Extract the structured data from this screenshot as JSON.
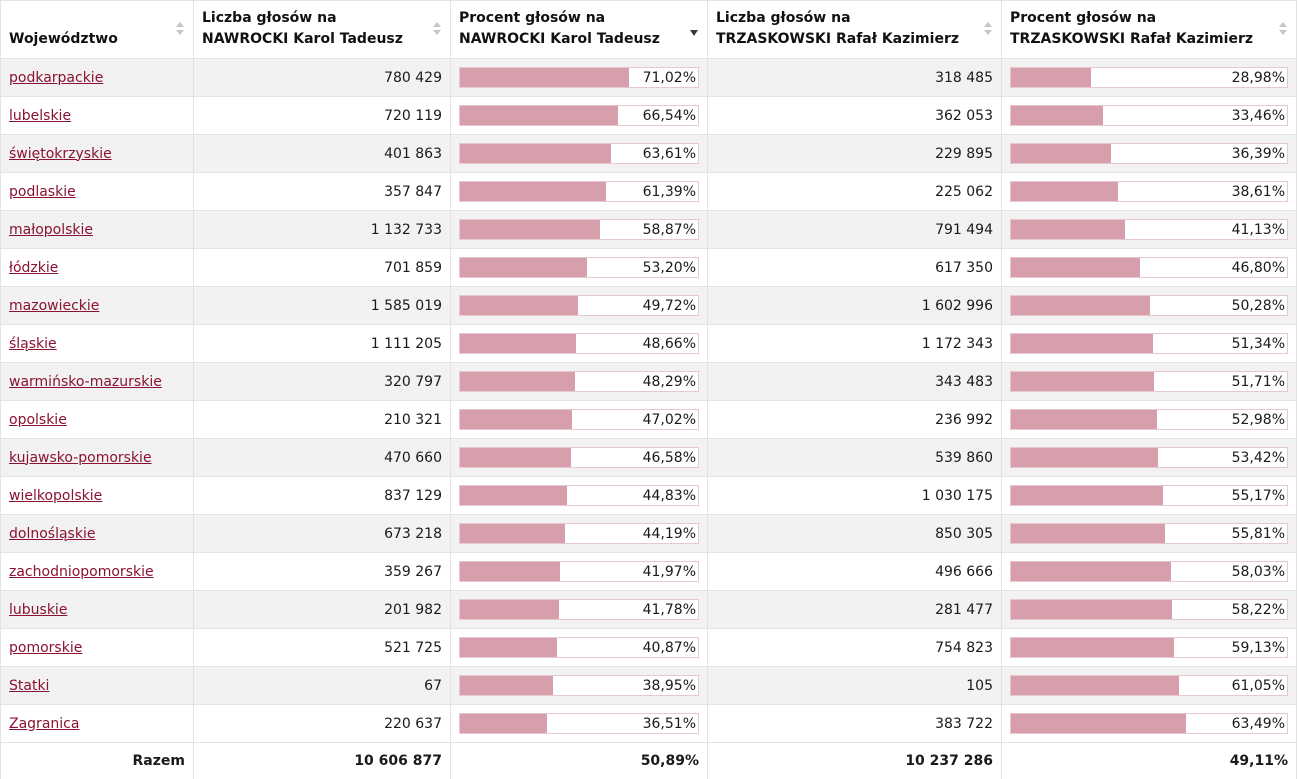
{
  "columns": [
    {
      "label_1": "Województwo",
      "label_2": "",
      "sort": "none"
    },
    {
      "label_1": "Liczba głosów na",
      "label_2": "NAWROCKI Karol Tadeusz",
      "sort": "none"
    },
    {
      "label_1": "Procent głosów na",
      "label_2": "NAWROCKI Karol Tadeusz",
      "sort": "desc"
    },
    {
      "label_1": "Liczba głosów na",
      "label_2": "TRZASKOWSKI Rafał Kazimierz",
      "sort": "none"
    },
    {
      "label_1": "Procent głosów na",
      "label_2": "TRZASKOWSKI Rafał Kazimierz",
      "sort": "none"
    }
  ],
  "rows": [
    {
      "name": "podkarpackie",
      "n_votes": "780 429",
      "n_pct": "71,02%",
      "n_frac": 0.7102,
      "t_votes": "318 485",
      "t_pct": "28,98%",
      "t_frac": 0.2898
    },
    {
      "name": "lubelskie",
      "n_votes": "720 119",
      "n_pct": "66,54%",
      "n_frac": 0.6654,
      "t_votes": "362 053",
      "t_pct": "33,46%",
      "t_frac": 0.3346
    },
    {
      "name": "świętokrzyskie",
      "n_votes": "401 863",
      "n_pct": "63,61%",
      "n_frac": 0.6361,
      "t_votes": "229 895",
      "t_pct": "36,39%",
      "t_frac": 0.3639
    },
    {
      "name": "podlaskie",
      "n_votes": "357 847",
      "n_pct": "61,39%",
      "n_frac": 0.6139,
      "t_votes": "225 062",
      "t_pct": "38,61%",
      "t_frac": 0.3861
    },
    {
      "name": "małopolskie",
      "n_votes": "1 132 733",
      "n_pct": "58,87%",
      "n_frac": 0.5887,
      "t_votes": "791 494",
      "t_pct": "41,13%",
      "t_frac": 0.4113
    },
    {
      "name": "łódzkie",
      "n_votes": "701 859",
      "n_pct": "53,20%",
      "n_frac": 0.532,
      "t_votes": "617 350",
      "t_pct": "46,80%",
      "t_frac": 0.468
    },
    {
      "name": "mazowieckie",
      "n_votes": "1 585 019",
      "n_pct": "49,72%",
      "n_frac": 0.4972,
      "t_votes": "1 602 996",
      "t_pct": "50,28%",
      "t_frac": 0.5028
    },
    {
      "name": "śląskie",
      "n_votes": "1 111 205",
      "n_pct": "48,66%",
      "n_frac": 0.4866,
      "t_votes": "1 172 343",
      "t_pct": "51,34%",
      "t_frac": 0.5134
    },
    {
      "name": "warmińsko-mazurskie",
      "n_votes": "320 797",
      "n_pct": "48,29%",
      "n_frac": 0.4829,
      "t_votes": "343 483",
      "t_pct": "51,71%",
      "t_frac": 0.5171
    },
    {
      "name": "opolskie",
      "n_votes": "210 321",
      "n_pct": "47,02%",
      "n_frac": 0.4702,
      "t_votes": "236 992",
      "t_pct": "52,98%",
      "t_frac": 0.5298
    },
    {
      "name": "kujawsko-pomorskie",
      "n_votes": "470 660",
      "n_pct": "46,58%",
      "n_frac": 0.4658,
      "t_votes": "539 860",
      "t_pct": "53,42%",
      "t_frac": 0.5342
    },
    {
      "name": "wielkopolskie",
      "n_votes": "837 129",
      "n_pct": "44,83%",
      "n_frac": 0.4483,
      "t_votes": "1 030 175",
      "t_pct": "55,17%",
      "t_frac": 0.5517
    },
    {
      "name": "dolnośląskie",
      "n_votes": "673 218",
      "n_pct": "44,19%",
      "n_frac": 0.4419,
      "t_votes": "850 305",
      "t_pct": "55,81%",
      "t_frac": 0.5581
    },
    {
      "name": "zachodniopomorskie",
      "n_votes": "359 267",
      "n_pct": "41,97%",
      "n_frac": 0.4197,
      "t_votes": "496 666",
      "t_pct": "58,03%",
      "t_frac": 0.5803
    },
    {
      "name": "lubuskie",
      "n_votes": "201 982",
      "n_pct": "41,78%",
      "n_frac": 0.4178,
      "t_votes": "281 477",
      "t_pct": "58,22%",
      "t_frac": 0.5822
    },
    {
      "name": "pomorskie",
      "n_votes": "521 725",
      "n_pct": "40,87%",
      "n_frac": 0.4087,
      "t_votes": "754 823",
      "t_pct": "59,13%",
      "t_frac": 0.5913
    },
    {
      "name": "Statki",
      "n_votes": "67",
      "n_pct": "38,95%",
      "n_frac": 0.3895,
      "t_votes": "105",
      "t_pct": "61,05%",
      "t_frac": 0.6105
    },
    {
      "name": "Zagranica",
      "n_votes": "220 637",
      "n_pct": "36,51%",
      "n_frac": 0.3651,
      "t_votes": "383 722",
      "t_pct": "63,49%",
      "t_frac": 0.6349
    }
  ],
  "total": {
    "label": "Razem",
    "n_votes": "10 606 877",
    "n_pct": "50,89%",
    "t_votes": "10 237 286",
    "t_pct": "49,11%"
  },
  "colors": {
    "link": "#8a1232",
    "bar_fill": "#d79eab",
    "bar_border": "#e8c8d0",
    "stripe": "#f2f2f2"
  }
}
